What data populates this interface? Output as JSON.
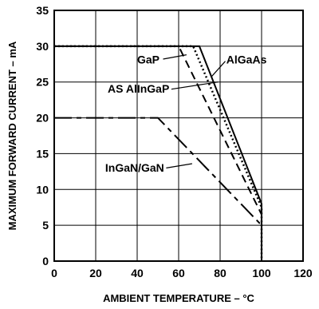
{
  "chart_data": {
    "type": "line",
    "xlabel": "AMBIENT TEMPERATURE – °C",
    "ylabel": "MAXIMUM FORWARD CURRENT – mA",
    "xlim": [
      0,
      120
    ],
    "ylim": [
      0,
      35
    ],
    "xticks": [
      0,
      20,
      40,
      60,
      80,
      100,
      120
    ],
    "yticks": [
      0,
      5,
      10,
      15,
      20,
      25,
      30,
      35
    ],
    "grid": true,
    "legend": "none",
    "series": [
      {
        "name": "AlGaAs",
        "style": "solid",
        "x": [
          0,
          70,
          100,
          100
        ],
        "y": [
          30,
          30,
          8,
          0
        ]
      },
      {
        "name": "GaP",
        "style": "dotted",
        "x": [
          0,
          67,
          100,
          100
        ],
        "y": [
          30,
          30,
          7.5,
          0
        ]
      },
      {
        "name": "AS AlInGaP",
        "style": "dashed",
        "x": [
          0,
          60,
          100,
          100
        ],
        "y": [
          30,
          30,
          6.5,
          0
        ]
      },
      {
        "name": "InGaN/GaN",
        "style": "longdash",
        "x": [
          0,
          50,
          100,
          100
        ],
        "y": [
          20,
          20,
          5,
          0
        ]
      }
    ],
    "annotations": [
      {
        "text": "GaP",
        "series": "GaP",
        "tx": 40,
        "ty": 27.6,
        "anchor": "start",
        "leader": [
          [
            52.5,
            28.2
          ],
          [
            63.8,
            28.8
          ]
        ]
      },
      {
        "text": "AlGaAs",
        "series": "AlGaAs",
        "tx": 83,
        "ty": 27.6,
        "anchor": "start",
        "leader": [
          [
            82.5,
            27.9
          ],
          [
            76,
            25.8
          ]
        ]
      },
      {
        "text": "AS AlInGaP",
        "series": "AS AlInGaP",
        "tx": 55.5,
        "ty": 23.5,
        "anchor": "end",
        "leader": [
          [
            56.5,
            24.0
          ],
          [
            79,
            25.0
          ]
        ]
      },
      {
        "text": "InGaN/GaN",
        "series": "InGaN/GaN",
        "tx": 53,
        "ty": 12.5,
        "anchor": "end",
        "leader": [
          [
            54,
            13.0
          ],
          [
            66.5,
            13.6
          ]
        ]
      }
    ]
  }
}
